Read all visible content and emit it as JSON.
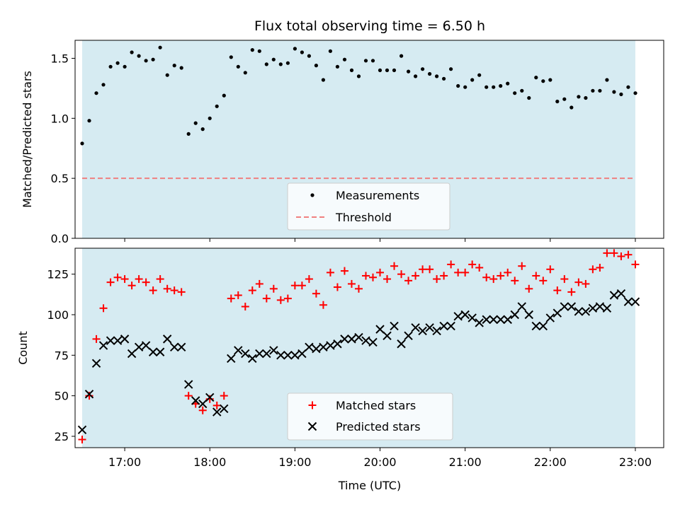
{
  "chart_data": [
    {
      "type": "scatter",
      "title": "Flux total observing time = 6.50 h",
      "ylabel": "Matched/Predicted stars",
      "xlabel": "",
      "xlim": [
        "16:25",
        "23:20"
      ],
      "ylim": [
        0,
        1.65
      ],
      "shaded_span": [
        "16:30",
        "23:00"
      ],
      "y_ticks": [
        "0.0",
        "0.5",
        "1.0",
        "1.5"
      ],
      "legend": {
        "position": "bottom-center",
        "entries": [
          "Measurements",
          "Threshold"
        ]
      },
      "threshold": 0.5,
      "series": [
        {
          "name": "Measurements",
          "x": [
            "16:30",
            "16:35",
            "16:40",
            "16:45",
            "16:50",
            "16:55",
            "17:00",
            "17:05",
            "17:10",
            "17:15",
            "17:20",
            "17:25",
            "17:30",
            "17:35",
            "17:40",
            "17:45",
            "17:50",
            "17:55",
            "18:00",
            "18:05",
            "18:10",
            "18:15",
            "18:20",
            "18:25",
            "18:30",
            "18:35",
            "18:40",
            "18:45",
            "18:50",
            "18:55",
            "19:00",
            "19:05",
            "19:10",
            "19:15",
            "19:20",
            "19:25",
            "19:30",
            "19:35",
            "19:40",
            "19:45",
            "19:50",
            "19:55",
            "20:00",
            "20:05",
            "20:10",
            "20:15",
            "20:20",
            "20:25",
            "20:30",
            "20:35",
            "20:40",
            "20:45",
            "20:50",
            "20:55",
            "21:00",
            "21:05",
            "21:10",
            "21:15",
            "21:20",
            "21:25",
            "21:30",
            "21:35",
            "21:40",
            "21:45",
            "21:50",
            "21:55",
            "22:00",
            "22:05",
            "22:10",
            "22:15",
            "22:20",
            "22:25",
            "22:30",
            "22:35",
            "22:40",
            "22:45",
            "22:50",
            "22:55",
            "23:00"
          ],
          "y": [
            0.79,
            0.98,
            1.21,
            1.28,
            1.43,
            1.46,
            1.43,
            1.55,
            1.52,
            1.48,
            1.49,
            1.59,
            1.36,
            1.44,
            1.42,
            0.87,
            0.96,
            0.91,
            1.0,
            1.1,
            1.19,
            1.51,
            1.43,
            1.38,
            1.57,
            1.56,
            1.45,
            1.49,
            1.45,
            1.46,
            1.58,
            1.55,
            1.52,
            1.44,
            1.32,
            1.56,
            1.43,
            1.49,
            1.4,
            1.35,
            1.48,
            1.48,
            1.4,
            1.4,
            1.4,
            1.52,
            1.39,
            1.35,
            1.41,
            1.37,
            1.35,
            1.33,
            1.41,
            1.27,
            1.26,
            1.32,
            1.36,
            1.26,
            1.26,
            1.27,
            1.29,
            1.21,
            1.23,
            1.17,
            1.34,
            1.31,
            1.32,
            1.14,
            1.16,
            1.09,
            1.18,
            1.17,
            1.23,
            1.23,
            1.32,
            1.22,
            1.2,
            1.26,
            1.21
          ]
        }
      ]
    },
    {
      "type": "scatter",
      "xlabel": "Time (UTC)",
      "ylabel": "Count",
      "xlim": [
        "16:25",
        "23:20"
      ],
      "ylim": [
        18,
        141
      ],
      "shaded_span": [
        "16:30",
        "23:00"
      ],
      "x_ticks": [
        "17:00",
        "18:00",
        "19:00",
        "20:00",
        "21:00",
        "22:00",
        "23:00"
      ],
      "y_ticks": [
        "25",
        "50",
        "75",
        "100",
        "125"
      ],
      "legend": {
        "position": "bottom-center",
        "entries": [
          "Matched stars",
          "Predicted stars"
        ]
      },
      "series": [
        {
          "name": "Matched stars",
          "x": [
            "16:30",
            "16:35",
            "16:40",
            "16:45",
            "16:50",
            "16:55",
            "17:00",
            "17:05",
            "17:10",
            "17:15",
            "17:20",
            "17:25",
            "17:30",
            "17:35",
            "17:40",
            "17:45",
            "17:50",
            "17:55",
            "18:00",
            "18:05",
            "18:10",
            "18:15",
            "18:20",
            "18:25",
            "18:30",
            "18:35",
            "18:40",
            "18:45",
            "18:50",
            "18:55",
            "19:00",
            "19:05",
            "19:10",
            "19:15",
            "19:20",
            "19:25",
            "19:30",
            "19:35",
            "19:40",
            "19:45",
            "19:50",
            "19:55",
            "20:00",
            "20:05",
            "20:10",
            "20:15",
            "20:20",
            "20:25",
            "20:30",
            "20:35",
            "20:40",
            "20:45",
            "20:50",
            "20:55",
            "21:00",
            "21:05",
            "21:10",
            "21:15",
            "21:20",
            "21:25",
            "21:30",
            "21:35",
            "21:40",
            "21:45",
            "21:50",
            "21:55",
            "22:00",
            "22:05",
            "22:10",
            "22:15",
            "22:20",
            "22:25",
            "22:30",
            "22:35",
            "22:40",
            "22:45",
            "22:50",
            "22:55",
            "23:00"
          ],
          "y": [
            23,
            50,
            85,
            104,
            120,
            123,
            122,
            118,
            122,
            120,
            115,
            122,
            116,
            115,
            114,
            50,
            45,
            41,
            48,
            44,
            50,
            110,
            112,
            105,
            115,
            119,
            110,
            116,
            109,
            110,
            118,
            118,
            122,
            113,
            106,
            126,
            117,
            127,
            119,
            116,
            124,
            123,
            126,
            122,
            130,
            125,
            121,
            124,
            128,
            128,
            122,
            124,
            131,
            126,
            126,
            131,
            129,
            123,
            122,
            124,
            126,
            121,
            130,
            116,
            124,
            121,
            128,
            115,
            122,
            114,
            120,
            119,
            128,
            129,
            138,
            138,
            136,
            137,
            131
          ]
        },
        {
          "name": "Predicted stars",
          "x": [
            "16:30",
            "16:35",
            "16:40",
            "16:45",
            "16:50",
            "16:55",
            "17:00",
            "17:05",
            "17:10",
            "17:15",
            "17:20",
            "17:25",
            "17:30",
            "17:35",
            "17:40",
            "17:45",
            "17:50",
            "17:55",
            "18:00",
            "18:05",
            "18:10",
            "18:15",
            "18:20",
            "18:25",
            "18:30",
            "18:35",
            "18:40",
            "18:45",
            "18:50",
            "18:55",
            "19:00",
            "19:05",
            "19:10",
            "19:15",
            "19:20",
            "19:25",
            "19:30",
            "19:35",
            "19:40",
            "19:45",
            "19:50",
            "19:55",
            "20:00",
            "20:05",
            "20:10",
            "20:15",
            "20:20",
            "20:25",
            "20:30",
            "20:35",
            "20:40",
            "20:45",
            "20:50",
            "20:55",
            "21:00",
            "21:05",
            "21:10",
            "21:15",
            "21:20",
            "21:25",
            "21:30",
            "21:35",
            "21:40",
            "21:45",
            "21:50",
            "21:55",
            "22:00",
            "22:05",
            "22:10",
            "22:15",
            "22:20",
            "22:25",
            "22:30",
            "22:35",
            "22:40",
            "22:45",
            "22:50",
            "22:55",
            "23:00"
          ],
          "y": [
            29,
            51,
            70,
            81,
            84,
            84,
            85,
            76,
            80,
            81,
            77,
            77,
            85,
            80,
            80,
            57,
            47,
            45,
            49,
            40,
            42,
            73,
            78,
            76,
            73,
            76,
            76,
            78,
            75,
            75,
            75,
            76,
            80,
            79,
            80,
            81,
            82,
            85,
            85,
            86,
            84,
            83,
            91,
            87,
            93,
            82,
            87,
            92,
            90,
            92,
            90,
            93,
            93,
            99,
            100,
            98,
            95,
            97,
            97,
            97,
            97,
            100,
            105,
            100,
            93,
            93,
            98,
            101,
            105,
            105,
            102,
            102,
            104,
            105,
            104,
            112,
            113,
            108,
            108
          ]
        }
      ]
    }
  ],
  "colors": {
    "shade": "#add8e6",
    "measurement": "#000000",
    "threshold": "#f08080",
    "matched": "#ff0000",
    "predicted": "#000000"
  }
}
